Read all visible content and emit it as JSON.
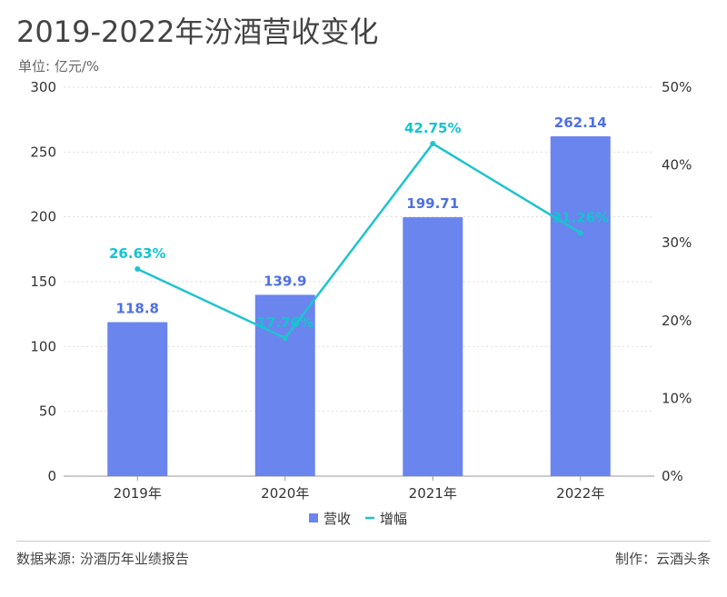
{
  "title": "2019-2022年汾酒营收变化",
  "unit_label": "单位: 亿元/%",
  "footer": {
    "source": "数据来源: 汾酒历年业绩报告",
    "credit": "制作：云酒头条"
  },
  "colors": {
    "bar": "#6B85EE",
    "bar_label": "#4F6FE6",
    "line": "#1FC3CF",
    "line_label": "#12C4CF",
    "grid": "#dddddd"
  },
  "chart_data": {
    "type": "bar",
    "categories": [
      "2019年",
      "2020年",
      "2021年",
      "2022年"
    ],
    "series": [
      {
        "name": "营收",
        "type": "bar",
        "axis": "left",
        "values": [
          118.8,
          139.9,
          199.71,
          262.14
        ],
        "labels": [
          "118.8",
          "139.9",
          "199.71",
          "262.14"
        ]
      },
      {
        "name": "增幅",
        "type": "line",
        "axis": "right",
        "values": [
          26.63,
          17.76,
          42.75,
          31.26
        ],
        "labels": [
          "26.63%",
          "17.76%",
          "42.75%",
          "31.26%"
        ]
      }
    ],
    "y_left": {
      "ylim": [
        0,
        300
      ],
      "ticks": [
        "0",
        "50",
        "100",
        "150",
        "200",
        "250",
        "300"
      ]
    },
    "y_right": {
      "ylim": [
        0,
        50
      ],
      "ticks": [
        "0%",
        "10%",
        "20%",
        "30%",
        "40%",
        "50%"
      ]
    },
    "grid": true,
    "legend": "bottom-center"
  }
}
